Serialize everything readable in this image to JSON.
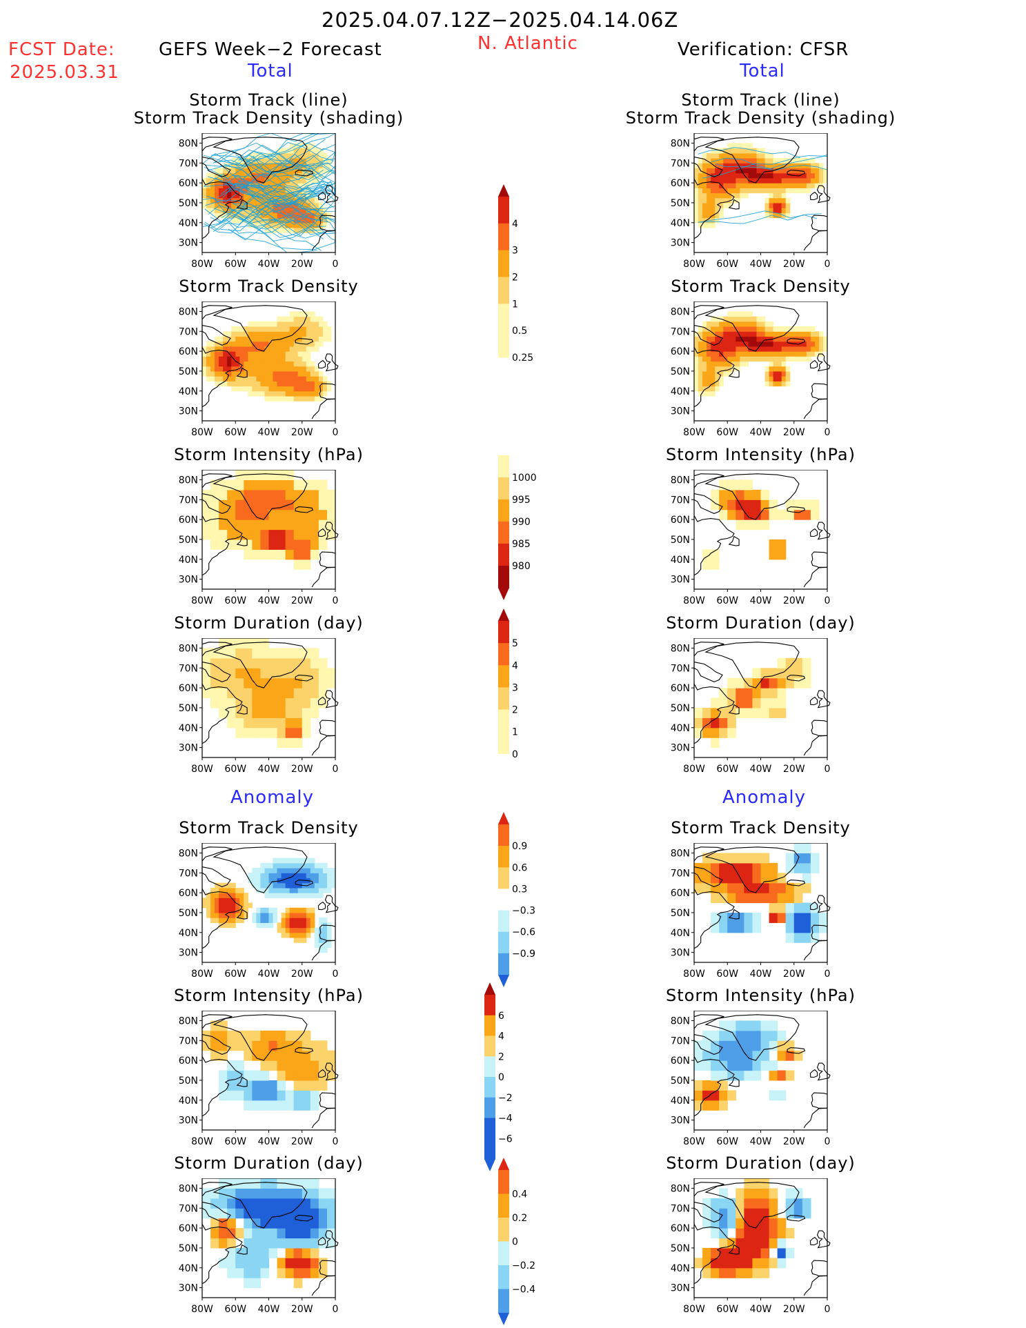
{
  "header": {
    "date_range": "2025.04.07.12Z−2025.04.14.06Z",
    "fcst_label": "FCST Date:",
    "fcst_date": "2025.03.31",
    "left_title": "GEFS Week−2 Forecast",
    "region": "N. Atlantic",
    "right_title": "Verification: CFSR",
    "section_total": "Total",
    "section_anomaly": "Anomaly"
  },
  "panel_titles": {
    "track_line": "Storm Track (line)",
    "track_shading": "Storm Track Density (shading)",
    "density": "Storm Track Density",
    "intensity": "Storm Intensity (hPa)",
    "duration": "Storm Duration (day)"
  },
  "axes": {
    "lat_ticks": [
      "30N",
      "40N",
      "50N",
      "60N",
      "70N",
      "80N"
    ],
    "lon_ticks": [
      "80W",
      "60W",
      "40W",
      "20W",
      "0"
    ]
  },
  "colors": {
    "c1": "#fff7b0",
    "c2": "#fcd36a",
    "c3": "#fba518",
    "c4": "#f86a1e",
    "c5": "#dd2513",
    "c6": "#a30b0b",
    "n1": "#c7f2f7",
    "n2": "#8ad4f4",
    "n3": "#4f9fe8",
    "n4": "#1f5fd7",
    "track": "#1aa0d8",
    "coast": "#000000"
  },
  "chart_data": [
    {
      "type": "heatmap",
      "title": "Storm Track (line) Storm Track Density (shading)",
      "source": "GEFS Week−2 Forecast",
      "section": "Total",
      "overlay": "storm track lines"
    },
    {
      "type": "heatmap",
      "title": "Storm Track Density",
      "source": "GEFS Week−2 Forecast",
      "section": "Total"
    },
    {
      "type": "heatmap",
      "title": "Storm Intensity (hPa)",
      "source": "GEFS Week−2 Forecast",
      "section": "Total"
    },
    {
      "type": "heatmap",
      "title": "Storm Duration (day)",
      "source": "GEFS Week−2 Forecast",
      "section": "Total"
    },
    {
      "type": "heatmap",
      "title": "Storm Track Density",
      "source": "GEFS Week−2 Forecast",
      "section": "Anomaly"
    },
    {
      "type": "heatmap",
      "title": "Storm Intensity (hPa)",
      "source": "GEFS Week−2 Forecast",
      "section": "Anomaly"
    },
    {
      "type": "heatmap",
      "title": "Storm Duration (day)",
      "source": "GEFS Week−2 Forecast",
      "section": "Anomaly"
    },
    {
      "type": "heatmap",
      "title": "Storm Track (line) Storm Track Density (shading)",
      "source": "Verification: CFSR",
      "section": "Total",
      "overlay": "storm track lines"
    },
    {
      "type": "heatmap",
      "title": "Storm Track Density",
      "source": "Verification: CFSR",
      "section": "Total"
    },
    {
      "type": "heatmap",
      "title": "Storm Intensity (hPa)",
      "source": "Verification: CFSR",
      "section": "Total"
    },
    {
      "type": "heatmap",
      "title": "Storm Duration (day)",
      "source": "Verification: CFSR",
      "section": "Total"
    },
    {
      "type": "heatmap",
      "title": "Storm Track Density",
      "source": "Verification: CFSR",
      "section": "Anomaly"
    },
    {
      "type": "heatmap",
      "title": "Storm Intensity (hPa)",
      "source": "Verification: CFSR",
      "section": "Anomaly"
    },
    {
      "type": "heatmap",
      "title": "Storm Duration (day)",
      "source": "Verification: CFSR",
      "section": "Anomaly"
    }
  ],
  "colorbars": {
    "density_total": {
      "labels": [
        "4",
        "3",
        "2",
        "1",
        "0.5",
        "0.25"
      ]
    },
    "intensity_total": {
      "labels": [
        "1000",
        "995",
        "990",
        "985",
        "980"
      ]
    },
    "duration_total": {
      "labels": [
        "5",
        "4",
        "3",
        "2",
        "1",
        "0"
      ]
    },
    "density_anom": {
      "labels": [
        "0.9",
        "0.6",
        "0.3",
        "−0.3",
        "−0.6",
        "−0.9"
      ]
    },
    "intensity_anom": {
      "labels": [
        "6",
        "4",
        "2",
        "0",
        "−2",
        "−4",
        "−6"
      ]
    },
    "duration_anom": {
      "labels": [
        "0.4",
        "0.2",
        "0",
        "−0.2",
        "−0.4"
      ]
    }
  }
}
